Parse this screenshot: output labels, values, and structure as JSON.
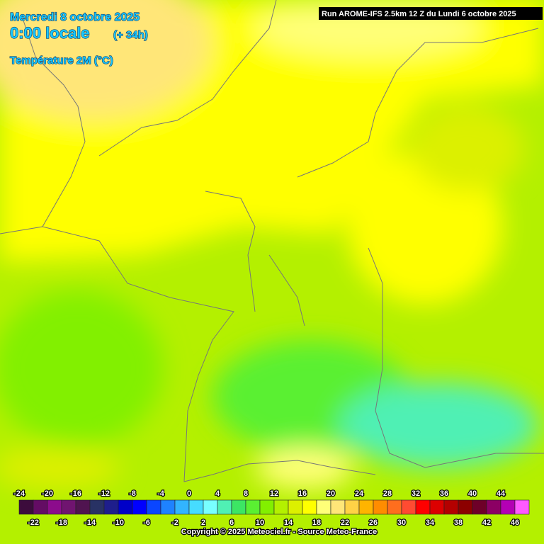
{
  "header": {
    "date": "Mercredi 8 octobre 2025",
    "time": "0:00 locale",
    "lead": "(+ 34h)",
    "parameter": "Température 2M (°C)",
    "run": "Run AROME-IFS 2.5km 12 Z du Lundi 6 octobre 2025"
  },
  "legend": {
    "top_labels": [
      -24,
      -20,
      -16,
      -12,
      -8,
      -4,
      0,
      4,
      8,
      12,
      16,
      20,
      24,
      28,
      32,
      36,
      40,
      44
    ],
    "bottom_labels": [
      -22,
      -18,
      -14,
      -10,
      -6,
      -2,
      2,
      6,
      10,
      14,
      18,
      22,
      26,
      30,
      34,
      38,
      42,
      46
    ],
    "colors": [
      "#3c0c3c",
      "#640c64",
      "#8c0c8c",
      "#701470",
      "#501450",
      "#283264",
      "#1e1e8c",
      "#0000c8",
      "#0000ff",
      "#0a46ff",
      "#1e82ff",
      "#32b4ff",
      "#46dcff",
      "#78ffff",
      "#50f0b4",
      "#3ce664",
      "#5af032",
      "#82f000",
      "#b4f000",
      "#dcf000",
      "#ffff00",
      "#ffff78",
      "#ffe678",
      "#ffd246",
      "#ffb400",
      "#ff8c00",
      "#ff6e1e",
      "#ff4b32",
      "#ff0000",
      "#dc0000",
      "#b40000",
      "#8c0000",
      "#6e0028",
      "#8c0064",
      "#b400b4",
      "#ff5aff"
    ]
  },
  "footer": {
    "copyright": "Copyright © 2025 Meteociel.fr - Source Meteo-France"
  }
}
